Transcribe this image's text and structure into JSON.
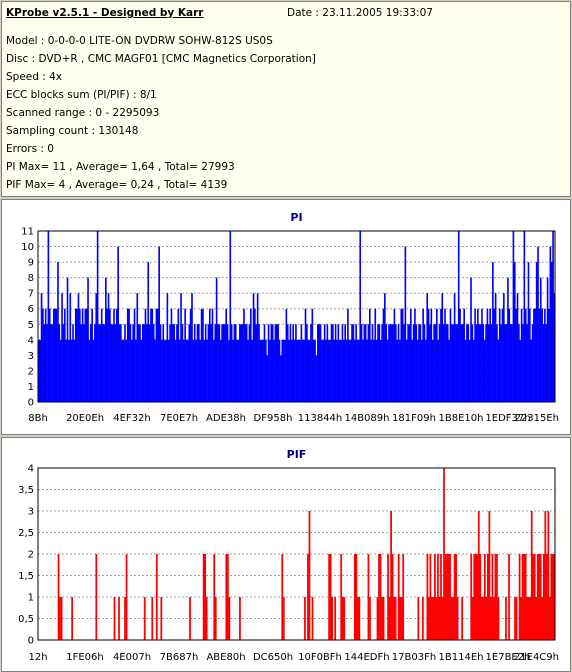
{
  "header": {
    "app_title": "KProbe v2.5.1 - Designed by Karr",
    "date": "Date : 23.11.2005 19:33:07"
  },
  "info_lines": [
    "Model : 0-0-0-0 LITE-ON DVDRW SOHW-812S  US0S",
    "Disc : DVD+R , CMC MAGF01 [CMC Magnetics Corporation]",
    "Speed : 4x",
    "ECC blocks sum (PI/PIF) : 8/1",
    "Scanned range : 0 - 2295093",
    "Sampling count : 130148",
    "Errors : 0",
    "PI Max= 11 , Average= 1,64 , Total= 27993",
    "PIF Max= 4 , Average= 0,24 , Total= 4139"
  ],
  "colors": {
    "pi": "#0000ff",
    "pif": "#ff0000",
    "title": "#000080"
  },
  "chart_data": [
    {
      "type": "bar",
      "title": "PI",
      "ylim": [
        0,
        11
      ],
      "yticks": [
        "0",
        "1",
        "2",
        "3",
        "4",
        "5",
        "6",
        "7",
        "8",
        "9",
        "10",
        "11"
      ],
      "xticks": [
        "8Bh",
        "20E0Eh",
        "4EF32h",
        "7E0E7h",
        "ADE38h",
        "DF958h",
        "113844h",
        "14B089h",
        "181F09h",
        "1B8E10h",
        "1EDF37h",
        "22315Eh"
      ],
      "grid": true,
      "series": [
        {
          "values": [
            4,
            4,
            7,
            6,
            5,
            6,
            5,
            11,
            6,
            5,
            5,
            6,
            6,
            6,
            9,
            5,
            4,
            7,
            5,
            6,
            4,
            8,
            4,
            7,
            4,
            5,
            4,
            6,
            6,
            7,
            6,
            5,
            6,
            5,
            6,
            6,
            8,
            4,
            5,
            6,
            4,
            5,
            7,
            11,
            5,
            5,
            6,
            5,
            5,
            8,
            6,
            7,
            6,
            5,
            5,
            6,
            5,
            6,
            10,
            5,
            5,
            4,
            4,
            5,
            4,
            6,
            6,
            5,
            4,
            5,
            6,
            4,
            7,
            5,
            5,
            4,
            5,
            5,
            6,
            5,
            9,
            5,
            6,
            6,
            5,
            4,
            6,
            6,
            10,
            5,
            4,
            5,
            4,
            4,
            7,
            4,
            5,
            6,
            5,
            5,
            4,
            5,
            6,
            4,
            7,
            5,
            4,
            6,
            4,
            4,
            5,
            6,
            7,
            4,
            5,
            4,
            5,
            5,
            4,
            6,
            6,
            4,
            5,
            4,
            5,
            6,
            5,
            6,
            4,
            5,
            8,
            5,
            5,
            4,
            5,
            5,
            5,
            6,
            5,
            4,
            11,
            5,
            4,
            5,
            5,
            4,
            4,
            5,
            5,
            5,
            6,
            5,
            5,
            4,
            5,
            6,
            4,
            7,
            6,
            5,
            7,
            5,
            4,
            4,
            4,
            5,
            4,
            3,
            5,
            4,
            5,
            5,
            4,
            5,
            5,
            5,
            4,
            3,
            4,
            4,
            4,
            6,
            5,
            4,
            5,
            4,
            5,
            4,
            5,
            4,
            4,
            4,
            5,
            4,
            4,
            6,
            5,
            4,
            4,
            5,
            6,
            4,
            4,
            3,
            5,
            5,
            5,
            4,
            4,
            5,
            4,
            5,
            4,
            4,
            5,
            5,
            4,
            5,
            4,
            5,
            4,
            4,
            5,
            4,
            5,
            4,
            6,
            4,
            4,
            5,
            5,
            4,
            5,
            4,
            4,
            11,
            5,
            4,
            5,
            5,
            4,
            5,
            6,
            4,
            5,
            4,
            6,
            4,
            5,
            5,
            4,
            5,
            6,
            7,
            5,
            4,
            5,
            5,
            5,
            5,
            6,
            5,
            4,
            5,
            4,
            6,
            6,
            5,
            10,
            4,
            5,
            5,
            6,
            4,
            5,
            6,
            5,
            4,
            5,
            5,
            4,
            6,
            5,
            4,
            7,
            6,
            5,
            6,
            4,
            5,
            5,
            6,
            4,
            5,
            6,
            7,
            5,
            6,
            5,
            5,
            4,
            6,
            5,
            5,
            7,
            5,
            5,
            11,
            6,
            5,
            5,
            6,
            4,
            5,
            5,
            4,
            8,
            5,
            4,
            6,
            5,
            6,
            5,
            5,
            6,
            5,
            4,
            5,
            6,
            5,
            6,
            5,
            9,
            6,
            7,
            5,
            4,
            6,
            5,
            6,
            7,
            5,
            5,
            8,
            6,
            5,
            5,
            11,
            9,
            6,
            7,
            5,
            4,
            6,
            5,
            11,
            6,
            5,
            9,
            6,
            4,
            5,
            6,
            6,
            9,
            10,
            6,
            8,
            6,
            5,
            6,
            5,
            8,
            6,
            10,
            9,
            11,
            7
          ]
        }
      ]
    },
    {
      "type": "bar",
      "title": "PIF",
      "ylim": [
        0,
        4
      ],
      "yticks": [
        "0",
        "0,5",
        "1",
        "1,5",
        "2",
        "2,5",
        "3",
        "3,5",
        "4"
      ],
      "xticks": [
        "12h",
        "1FE06h",
        "4E007h",
        "7B687h",
        "ABE80h",
        "DC650h",
        "10F0BFh",
        "144EDFh",
        "17B03Fh",
        "1B114Eh",
        "1E7BE2h",
        "21E4C9h"
      ],
      "grid": true,
      "series": [
        {
          "values": [
            0,
            0,
            0,
            0,
            0,
            0,
            0,
            0,
            0,
            0,
            0,
            0,
            0,
            2,
            1,
            1,
            0,
            0,
            0,
            0,
            0,
            0,
            1,
            0,
            0,
            0,
            0,
            0,
            0,
            0,
            0,
            0,
            0,
            0,
            0,
            0,
            0,
            0,
            2,
            0,
            0,
            0,
            0,
            0,
            0,
            0,
            0,
            0,
            0,
            0,
            1,
            0,
            0,
            1,
            0,
            0,
            0,
            1,
            2,
            0,
            0,
            0,
            0,
            0,
            0,
            0,
            0,
            0,
            0,
            0,
            1,
            0,
            0,
            0,
            0,
            1,
            0,
            0,
            2,
            0,
            0,
            1,
            0,
            0,
            0,
            0,
            0,
            0,
            0,
            0,
            0,
            0,
            0,
            0,
            0,
            0,
            0,
            0,
            0,
            0,
            1,
            0,
            0,
            0,
            0,
            0,
            0,
            0,
            0,
            2,
            2,
            1,
            0,
            0,
            0,
            0,
            2,
            1,
            0,
            0,
            0,
            0,
            0,
            0,
            2,
            2,
            1,
            0,
            0,
            0,
            0,
            0,
            0,
            1,
            0,
            0,
            0,
            0,
            0,
            0,
            0,
            0,
            0,
            0,
            0,
            0,
            0,
            0,
            0,
            0,
            0,
            0,
            0,
            0,
            0,
            0,
            0,
            0,
            0,
            0,
            0,
            2,
            1,
            0,
            0,
            0,
            0,
            0,
            0,
            0,
            0,
            0,
            0,
            0,
            0,
            0,
            1,
            0,
            2,
            3,
            0,
            1,
            0,
            0,
            0,
            0,
            0,
            0,
            0,
            0,
            0,
            0,
            2,
            2,
            1,
            0,
            1,
            0,
            0,
            0,
            2,
            1,
            1,
            0,
            0,
            0,
            0,
            0,
            0,
            2,
            2,
            1,
            1,
            0,
            0,
            0,
            0,
            0,
            2,
            1,
            0,
            0,
            0,
            0,
            1,
            2,
            2,
            1,
            1,
            0,
            0,
            2,
            1,
            3,
            2,
            1,
            1,
            0,
            2,
            1,
            1,
            2,
            0,
            0,
            0,
            0,
            0,
            0,
            0,
            0,
            0,
            1,
            0,
            0,
            1,
            0,
            0,
            2,
            1,
            2,
            1,
            1,
            2,
            1,
            2,
            1,
            2,
            1,
            4,
            2,
            2,
            2,
            2,
            1,
            1,
            2,
            2,
            1,
            0,
            0,
            1,
            0,
            0,
            0,
            0,
            0,
            2,
            1,
            2,
            2,
            2,
            3,
            2,
            1,
            1,
            2,
            1,
            2,
            3,
            1,
            2,
            1,
            2,
            2,
            1,
            0,
            0,
            0,
            0,
            1,
            0,
            2,
            0,
            0,
            0,
            1,
            1,
            0,
            2,
            1,
            2,
            2,
            2,
            1,
            1,
            1,
            3,
            2,
            2,
            1,
            2,
            2,
            2,
            1,
            2,
            3,
            2,
            3,
            1,
            2,
            2,
            2
          ]
        }
      ]
    }
  ]
}
